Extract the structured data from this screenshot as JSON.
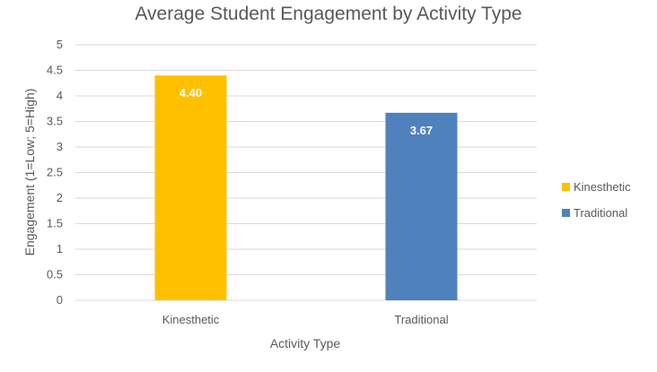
{
  "chart_data": {
    "type": "bar",
    "title": "Average Student Engagement by Activity Type",
    "xlabel": "Activity Type",
    "ylabel": "Engagement (1=Low; 5=High)",
    "categories": [
      "Kinesthetic",
      "Traditional"
    ],
    "values": [
      4.4,
      3.67
    ],
    "data_labels": [
      "4.40",
      "3.67"
    ],
    "colors": [
      "#FFC000",
      "#4F81BD"
    ],
    "ylim": [
      0,
      5
    ],
    "yticks": [
      "0",
      "0.5",
      "1",
      "1.5",
      "2",
      "2.5",
      "3",
      "3.5",
      "4",
      "4.5",
      "5"
    ],
    "grid": true,
    "legend": {
      "placement": "right",
      "entries": [
        "Kinesthetic",
        "Traditional"
      ]
    }
  }
}
